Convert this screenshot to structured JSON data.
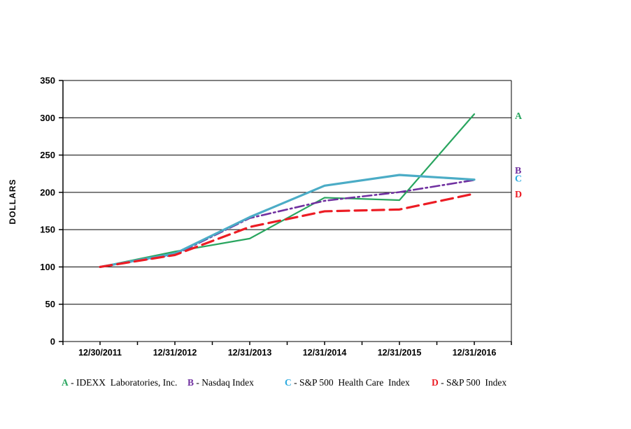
{
  "y_axis_title": "DOLLARS",
  "chart_data": {
    "type": "line",
    "title": "",
    "xlabel": "",
    "ylabel": "DOLLARS",
    "ylim": [
      0,
      350
    ],
    "yticks": [
      0,
      50,
      100,
      150,
      200,
      250,
      300,
      350
    ],
    "grid": "horizontal gridlines every 50, full plot box border",
    "x_minor_ticks": "midpoints between year labels",
    "legend_position": "bottom",
    "categories": [
      "12/30/2011",
      "12/31/2012",
      "12/31/2013",
      "12/31/2014",
      "12/31/2015",
      "12/31/2016"
    ],
    "series": [
      {
        "id": "A",
        "name": "IDEXX Laboratories, Inc.",
        "legend_letter": "A",
        "legend_text": " - IDEXX  Laboratories, Inc.",
        "color": "#29A55F",
        "letter_color": "#29A55F",
        "dash": "solid",
        "width": 2.2,
        "values": [
          100,
          120.6,
          138.07,
          192.87,
          189.56,
          304.94
        ],
        "end_label": "A",
        "end_label_value": 303
      },
      {
        "id": "B",
        "name": "Nasdaq Index",
        "legend_letter": "B",
        "legend_text": " - Nasdaq Index",
        "color": "#7030A0",
        "letter_color": "#7030A0",
        "dash": "dash-dot",
        "width": 2.6,
        "values": [
          100,
          116.41,
          165.47,
          188.69,
          200.32,
          216.54
        ],
        "end_label": "B",
        "end_label_value": 230
      },
      {
        "id": "C",
        "name": "S&P 500 Health Care Index",
        "legend_letter": "C",
        "legend_text": " - S&P 500  Health Care  Index",
        "color": "#4BACC6",
        "letter_color": "#2BAADF",
        "dash": "solid",
        "width": 3.2,
        "values": [
          100,
          117.89,
          166.76,
          208.96,
          223.33,
          217.04
        ],
        "end_label": "C",
        "end_label_value": 219
      },
      {
        "id": "D",
        "name": "S&P 500 Index",
        "legend_letter": "D",
        "legend_text": " - S&P 500  Index",
        "color": "#EC1C24",
        "letter_color": "#EC1C24",
        "dash": "dashed",
        "width": 3.2,
        "values": [
          100,
          116.0,
          153.58,
          174.6,
          177.01,
          198.18
        ],
        "end_label": "D",
        "end_label_value": 198
      }
    ]
  }
}
